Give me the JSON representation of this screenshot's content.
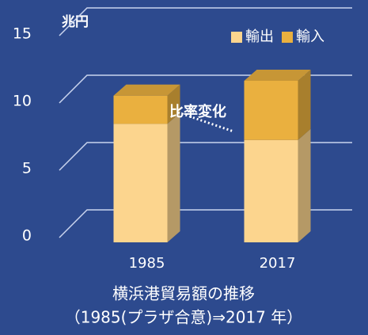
{
  "chart_data": {
    "type": "bar3d_stacked",
    "title": "横浜港貿易額の推移",
    "subtitle": "（1985(プラザ合意)⇒2017 年）",
    "y_unit": "兆円",
    "annotation": "比率変化",
    "categories": [
      "1985",
      "2017"
    ],
    "series": [
      {
        "name": "輸出",
        "color": "#fcd58e",
        "values": [
          8.8,
          7.6
        ]
      },
      {
        "name": "輸入",
        "color": "#eab03f",
        "values": [
          2.1,
          4.4
        ]
      }
    ],
    "ylim": [
      0,
      15
    ],
    "yticks": [
      0,
      5,
      10,
      15
    ],
    "grid": true,
    "legend": "top-right"
  }
}
